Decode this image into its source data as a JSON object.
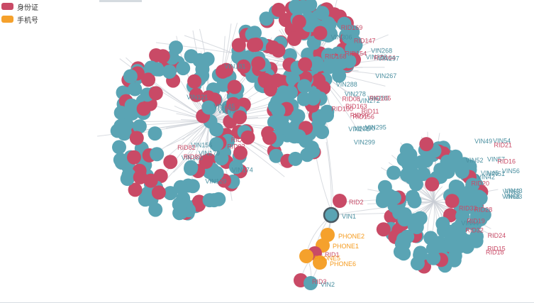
{
  "legend": [
    {
      "label": "身份证",
      "color": "#c94a66"
    },
    {
      "label": "手机号",
      "color": "#f5a12c"
    }
  ],
  "colors": {
    "rid": "#c94a66",
    "vin": "#5aa4b4",
    "phone": "#f5a12c",
    "edge": "#c9cdd4",
    "rid_label": "#c94a66",
    "vin_label": "#4a8fa0",
    "phone_label": "#f59a1c",
    "highlight_border": "#4a5a63"
  },
  "nodes": {
    "RID2": {
      "type": "rid",
      "label": "RID2"
    },
    "VIN1": {
      "type": "vin",
      "label": "VIN1",
      "selected": true
    },
    "PHONE2": {
      "type": "phone",
      "label": "PHONE2"
    },
    "PHONE1": {
      "type": "phone",
      "label": "PHONE1"
    },
    "RID1": {
      "type": "rid",
      "label": "RID1"
    },
    "PHONE5": {
      "type": "phone",
      "label": "PHONE5"
    },
    "PHONE6": {
      "type": "phone",
      "label": "PHONE6"
    },
    "RID3": {
      "type": "rid",
      "label": "RID3"
    },
    "VIN2": {
      "type": "vin",
      "label": "VIN2"
    }
  },
  "cluster_labels": {
    "top": [
      "VIN267",
      "RID147",
      "RID154",
      "RID156",
      "RID160",
      "VIN268",
      "VIN272",
      "VIN276",
      "VIN278",
      "VIN283",
      "VIN285",
      "RID164",
      "VIN290",
      "VIN288",
      "RID165",
      "RID168",
      "RID163",
      "RID169",
      "VIN295",
      "VIN297",
      "VIN299",
      "VIN306",
      "RID99",
      "RID11",
      "RID08"
    ],
    "left": [
      "RID84",
      "VIN79",
      "VIN181",
      "VIN179",
      "VIN174",
      "VIN160",
      "VIN156",
      "RID82",
      "RID92",
      "RID89",
      "VIN145",
      "VIN129",
      "VIN121"
    ],
    "right": [
      "VIN58",
      "VIN54",
      "VIN56",
      "VIN52",
      "VIN51",
      "VIN53",
      "VIN57",
      "VIN49",
      "VIN45",
      "VIN43",
      "VIN44",
      "VIN42",
      "VIN33",
      "RID24",
      "RID28",
      "RID21",
      "RID19",
      "RID20",
      "RID18",
      "RID16",
      "RID15",
      "RID32",
      "RID33"
    ]
  }
}
